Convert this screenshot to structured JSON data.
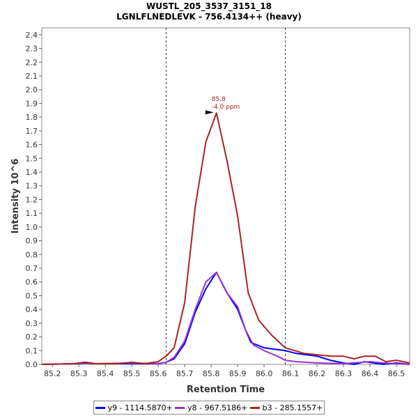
{
  "chart_data": {
    "type": "line",
    "title": "WUSTL_205_3537_3151_18",
    "subtitle": "LGNLFLNEDLEVK - 756.4134++ (heavy)",
    "xlabel": "Retention Time",
    "ylabel": "Intensity 10^6",
    "xlim": [
      85.16,
      86.55
    ],
    "ylim": [
      0,
      2.45
    ],
    "x_ticks": [
      "85.2",
      "85.3",
      "85.4",
      "85.5",
      "85.6",
      "85.7",
      "85.8",
      "85.9",
      "86.0",
      "86.1",
      "86.2",
      "86.3",
      "86.4",
      "86.5"
    ],
    "y_ticks": [
      "0.0",
      "0.1",
      "0.2",
      "0.3",
      "0.4",
      "0.5",
      "0.6",
      "0.7",
      "0.8",
      "0.9",
      "1.0",
      "1.1",
      "1.2",
      "1.3",
      "1.4",
      "1.5",
      "1.6",
      "1.7",
      "1.8",
      "1.9",
      "2.0",
      "2.1",
      "2.2",
      "2.3",
      "2.4"
    ],
    "vlines": [
      85.63,
      86.08
    ],
    "annotation": {
      "x": 85.82,
      "y": 1.83,
      "line1": "85.8",
      "line2": "-4.0 ppm"
    },
    "grid": false,
    "legend_position": "bottom",
    "series": [
      {
        "name": "y9 - 1114.5870+",
        "color": "#0000ff",
        "x": [
          85.16,
          85.3,
          85.33,
          85.36,
          85.5,
          85.6,
          85.63,
          85.66,
          85.7,
          85.74,
          85.78,
          85.82,
          85.86,
          85.9,
          85.93,
          85.95,
          86.0,
          86.08,
          86.12,
          86.2,
          86.25,
          86.3,
          86.34,
          86.38,
          86.45,
          86.5,
          86.55
        ],
        "y": [
          0.0,
          0.005,
          0.01,
          0.005,
          0.005,
          0.005,
          0.015,
          0.04,
          0.15,
          0.38,
          0.55,
          0.67,
          0.52,
          0.4,
          0.25,
          0.16,
          0.12,
          0.1,
          0.08,
          0.06,
          0.03,
          0.01,
          0.0,
          0.02,
          0.0,
          0.01,
          0.0
        ]
      },
      {
        "name": "y8 - 967.5186+",
        "color": "#9933cc",
        "x": [
          85.16,
          85.3,
          85.33,
          85.36,
          85.5,
          85.6,
          85.63,
          85.66,
          85.7,
          85.74,
          85.78,
          85.82,
          85.86,
          85.9,
          85.93,
          85.96,
          86.0,
          86.05,
          86.08,
          86.12,
          86.2,
          86.3,
          86.4,
          86.45,
          86.5,
          86.55
        ],
        "y": [
          0.0,
          0.005,
          0.015,
          0.005,
          0.01,
          0.005,
          0.015,
          0.05,
          0.17,
          0.4,
          0.6,
          0.67,
          0.52,
          0.42,
          0.25,
          0.14,
          0.1,
          0.06,
          0.03,
          0.02,
          0.01,
          0.005,
          0.02,
          0.01,
          0.005,
          0.0
        ]
      },
      {
        "name": "b3 - 285.1557+",
        "color": "#aa2222",
        "x": [
          85.16,
          85.28,
          85.32,
          85.36,
          85.45,
          85.5,
          85.55,
          85.6,
          85.63,
          85.66,
          85.7,
          85.74,
          85.78,
          85.82,
          85.86,
          85.9,
          85.94,
          85.98,
          86.03,
          86.08,
          86.15,
          86.2,
          86.25,
          86.3,
          86.34,
          86.38,
          86.42,
          86.46,
          86.5,
          86.55
        ],
        "y": [
          0.0,
          0.005,
          0.015,
          0.005,
          0.005,
          0.015,
          0.005,
          0.02,
          0.06,
          0.12,
          0.45,
          1.15,
          1.62,
          1.83,
          1.48,
          1.08,
          0.52,
          0.32,
          0.21,
          0.12,
          0.08,
          0.07,
          0.06,
          0.06,
          0.04,
          0.06,
          0.06,
          0.02,
          0.03,
          0.01
        ]
      }
    ]
  }
}
